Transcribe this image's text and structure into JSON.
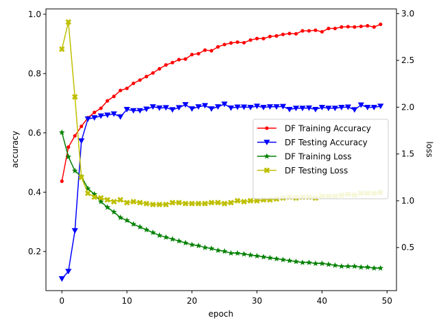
{
  "chart_data": {
    "type": "line",
    "xlabel": "epoch",
    "ylabel_left": "accuracy",
    "ylabel_right": "loss",
    "xlim": [
      -2.45,
      51.45
    ],
    "ylim_left": [
      0.068,
      1.018
    ],
    "ylim_right": [
      0.04,
      3.05
    ],
    "x_ticks": [
      0,
      10,
      20,
      30,
      40,
      50
    ],
    "y_ticks_left": [
      0.2,
      0.4,
      0.6,
      0.8,
      1.0
    ],
    "y_ticks_right": [
      0.5,
      1.0,
      1.5,
      2.0,
      2.5,
      3.0
    ],
    "legend_position": "center-right",
    "x": [
      0,
      1,
      2,
      3,
      4,
      5,
      6,
      7,
      8,
      9,
      10,
      11,
      12,
      13,
      14,
      15,
      16,
      17,
      18,
      19,
      20,
      21,
      22,
      23,
      24,
      25,
      26,
      27,
      28,
      29,
      30,
      31,
      32,
      33,
      34,
      35,
      36,
      37,
      38,
      39,
      40,
      41,
      42,
      43,
      44,
      45,
      46,
      47,
      48,
      49
    ],
    "series": [
      {
        "name": "DF Training Accuracy",
        "axis": "left",
        "color": "#ff0000",
        "marker": "circle",
        "values": [
          0.437,
          0.552,
          0.59,
          0.622,
          0.651,
          0.669,
          0.683,
          0.708,
          0.723,
          0.743,
          0.75,
          0.767,
          0.778,
          0.79,
          0.802,
          0.816,
          0.829,
          0.837,
          0.847,
          0.849,
          0.864,
          0.867,
          0.879,
          0.877,
          0.89,
          0.898,
          0.903,
          0.906,
          0.904,
          0.913,
          0.918,
          0.918,
          0.925,
          0.927,
          0.932,
          0.935,
          0.934,
          0.944,
          0.944,
          0.946,
          0.941,
          0.952,
          0.952,
          0.957,
          0.958,
          0.957,
          0.959,
          0.961,
          0.957,
          0.966
        ]
      },
      {
        "name": "DF Testing Accuracy",
        "axis": "left",
        "color": "#0000ff",
        "marker": "triangle-down",
        "values": [
          0.108,
          0.133,
          0.27,
          0.573,
          0.647,
          0.651,
          0.657,
          0.66,
          0.664,
          0.654,
          0.679,
          0.675,
          0.675,
          0.68,
          0.688,
          0.684,
          0.685,
          0.678,
          0.685,
          0.695,
          0.681,
          0.688,
          0.692,
          0.681,
          0.688,
          0.697,
          0.684,
          0.687,
          0.687,
          0.686,
          0.69,
          0.686,
          0.688,
          0.688,
          0.689,
          0.679,
          0.683,
          0.683,
          0.684,
          0.679,
          0.686,
          0.683,
          0.683,
          0.686,
          0.687,
          0.678,
          0.694,
          0.686,
          0.686,
          0.69
        ]
      },
      {
        "name": "DF Training Loss",
        "axis": "right",
        "color": "#008000",
        "marker": "star",
        "values": [
          1.73,
          1.47,
          1.32,
          1.26,
          1.13,
          1.07,
          0.99,
          0.93,
          0.88,
          0.82,
          0.79,
          0.75,
          0.72,
          0.69,
          0.66,
          0.63,
          0.61,
          0.59,
          0.57,
          0.55,
          0.53,
          0.52,
          0.5,
          0.49,
          0.47,
          0.46,
          0.44,
          0.44,
          0.43,
          0.42,
          0.41,
          0.4,
          0.39,
          0.38,
          0.37,
          0.36,
          0.35,
          0.34,
          0.34,
          0.33,
          0.33,
          0.32,
          0.31,
          0.3,
          0.3,
          0.3,
          0.29,
          0.29,
          0.28,
          0.28
        ]
      },
      {
        "name": "DF Testing Loss",
        "axis": "right",
        "color": "#bfbf00",
        "marker": "x-filled",
        "values": [
          2.62,
          2.91,
          2.11,
          1.25,
          1.08,
          1.04,
          1.03,
          1.01,
          0.99,
          1.01,
          0.98,
          0.99,
          0.98,
          0.97,
          0.96,
          0.96,
          0.96,
          0.98,
          0.98,
          0.97,
          0.97,
          0.97,
          0.97,
          0.98,
          0.98,
          0.97,
          0.98,
          1.0,
          0.99,
          1.0,
          1.0,
          1.01,
          1.01,
          1.02,
          1.03,
          1.04,
          1.03,
          1.04,
          1.04,
          1.03,
          1.05,
          1.05,
          1.05,
          1.06,
          1.07,
          1.06,
          1.08,
          1.08,
          1.08,
          1.09
        ]
      }
    ]
  }
}
